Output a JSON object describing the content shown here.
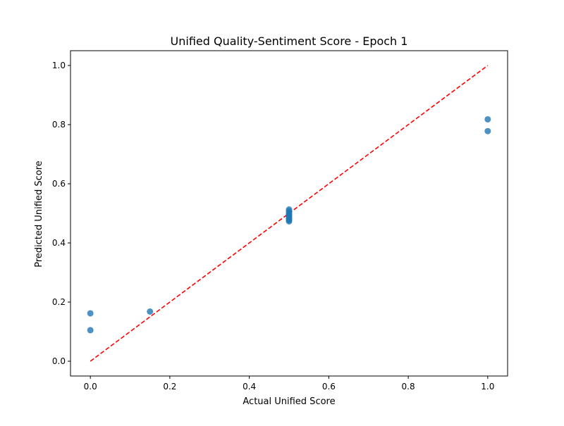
{
  "chart_data": {
    "type": "scatter",
    "title": "Unified Quality-Sentiment Score - Epoch 1",
    "xlabel": "Actual Unified Score",
    "ylabel": "Predicted Unified Score",
    "xlim": [
      -0.05,
      1.05
    ],
    "ylim": [
      -0.05,
      1.05
    ],
    "xticks": [
      0.0,
      0.2,
      0.4,
      0.6,
      0.8,
      1.0
    ],
    "yticks": [
      0.0,
      0.2,
      0.4,
      0.6,
      0.8,
      1.0
    ],
    "xtick_labels": [
      "0.0",
      "0.2",
      "0.4",
      "0.6",
      "0.8",
      "1.0"
    ],
    "ytick_labels": [
      "0.0",
      "0.2",
      "0.4",
      "0.6",
      "0.8",
      "1.0"
    ],
    "grid": false,
    "series": [
      {
        "marker_color": "#1f77b4",
        "x": [
          0.0,
          0.0,
          0.15,
          0.5,
          0.5,
          0.5,
          0.5,
          0.5,
          0.5,
          0.5,
          0.5,
          0.5,
          0.5,
          1.0,
          1.0
        ],
        "y": [
          0.162,
          0.105,
          0.168,
          0.513,
          0.507,
          0.501,
          0.497,
          0.493,
          0.489,
          0.485,
          0.481,
          0.477,
          0.473,
          0.818,
          0.778
        ]
      }
    ],
    "reference_line": {
      "x": [
        0.0,
        1.0
      ],
      "y": [
        0.0,
        1.0
      ],
      "color": "#ff0000",
      "style": "dashed"
    }
  }
}
